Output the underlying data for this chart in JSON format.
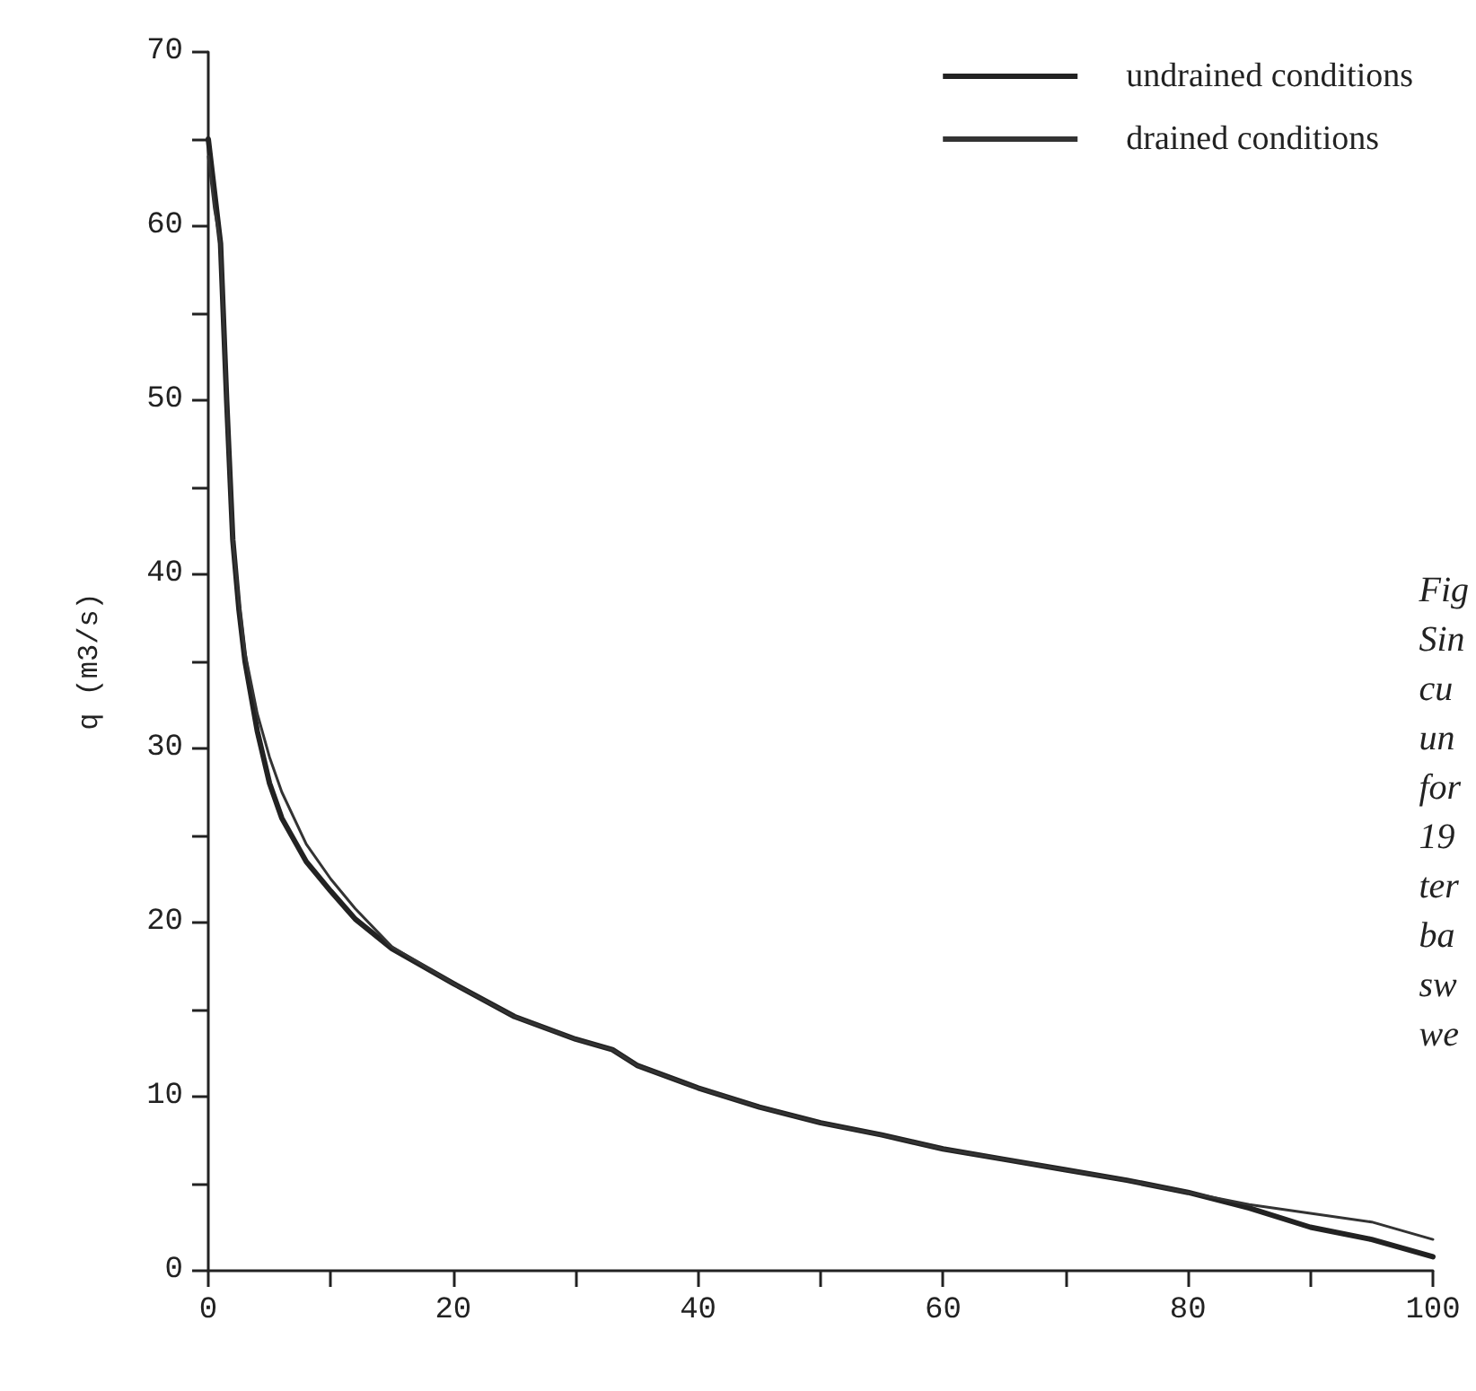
{
  "chart_data": {
    "type": "line",
    "ylabel": "q (m3/s)",
    "annotations": [
      "Fig\nSin\ncu\nun\nfor\n19\nter\nba\nsw\nwe"
    ],
    "xlim": [
      0,
      100
    ],
    "ylim": [
      0,
      70
    ],
    "xticks": [
      0,
      {
        "value": 10,
        "label": null
      },
      20,
      {
        "value": 30,
        "label": null
      },
      40,
      {
        "value": 50,
        "label": null
      },
      60,
      {
        "value": 70,
        "label": null
      },
      80,
      {
        "value": 90,
        "label": null
      },
      100
    ],
    "yticks": [
      0,
      {
        "value": 5,
        "label": null
      },
      10,
      {
        "value": 15,
        "label": null
      },
      20,
      {
        "value": 25,
        "label": null
      },
      30,
      {
        "value": 35,
        "label": null
      },
      40,
      {
        "value": 45,
        "label": null
      },
      50,
      {
        "value": 55,
        "label": null
      },
      60,
      {
        "value": 65,
        "label": null
      },
      70
    ],
    "grid": false,
    "legend": "top right",
    "marker": "none",
    "line_style": "solid",
    "series": [
      {
        "name": "undrained conditions",
        "color": "#222222",
        "x": [
          0,
          0.5,
          1,
          1.5,
          2,
          2.5,
          3,
          4,
          5,
          6,
          8,
          10,
          12,
          15,
          20,
          25,
          30,
          33,
          35,
          40,
          45,
          50,
          55,
          60,
          65,
          70,
          75,
          80,
          85,
          90,
          95,
          100
        ],
        "values": [
          65,
          62,
          59,
          50,
          42,
          38,
          35,
          31,
          28,
          26,
          23.5,
          21.8,
          20.2,
          18.5,
          16.5,
          14.6,
          13.3,
          12.7,
          11.8,
          10.5,
          9.4,
          8.5,
          7.8,
          7,
          6.4,
          5.8,
          5.2,
          4.5,
          3.6,
          2.5,
          1.8,
          0.8
        ]
      },
      {
        "name": "drained conditions",
        "color": "#333333",
        "x": [
          0,
          0.5,
          1,
          1.5,
          2,
          2.5,
          3,
          4,
          5,
          6,
          8,
          10,
          12,
          15,
          20,
          25,
          30,
          33,
          35,
          40,
          45,
          50,
          55,
          60,
          65,
          70,
          75,
          80,
          85,
          90,
          95,
          100
        ],
        "values": [
          64,
          61,
          59,
          50,
          42,
          38.5,
          35.5,
          32,
          29.5,
          27.5,
          24.5,
          22.5,
          20.8,
          18.6,
          16.5,
          14.6,
          13.3,
          12.7,
          11.8,
          10.5,
          9.4,
          8.5,
          7.8,
          7,
          6.4,
          5.8,
          5.2,
          4.5,
          3.8,
          3.3,
          2.8,
          1.8
        ]
      }
    ]
  }
}
